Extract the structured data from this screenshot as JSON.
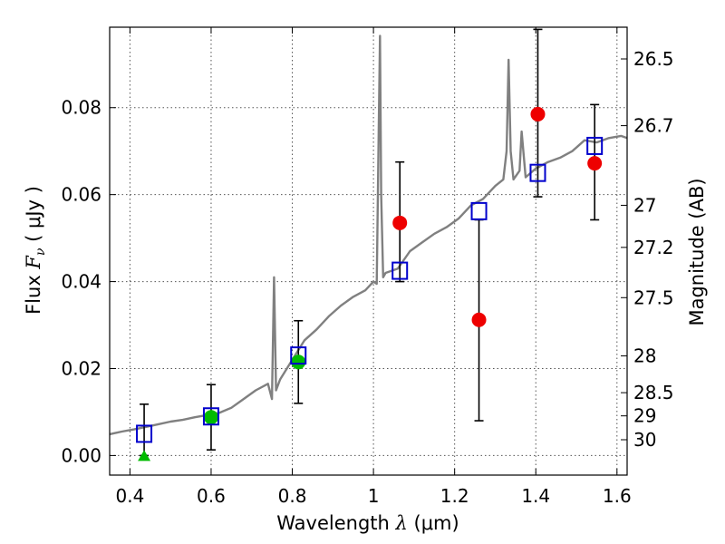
{
  "chart_data": {
    "type": "scatter",
    "xlabel": {
      "prefix": "Wavelength  ",
      "symbol": "λ",
      "unit": " (μm)"
    },
    "ylabel": {
      "prefix": "Flux  ",
      "symbol": "F",
      "subscript": "ν",
      "unit": "  ( μJy )"
    },
    "y2label": "Magnitude (AB)",
    "xlim": [
      0.35,
      1.625
    ],
    "ylim": [
      -0.0045,
      0.0985
    ],
    "grid": true,
    "colors": {
      "model": "#808080",
      "model_points": "#0000cc",
      "detections": "#ee0000",
      "green_points": "#00bb00",
      "errorbars": "#000000",
      "grid": "#555555"
    },
    "x_ticks": [
      {
        "value": 0.4,
        "label": "0.4"
      },
      {
        "value": 0.6,
        "label": "0.6"
      },
      {
        "value": 0.8,
        "label": "0.8"
      },
      {
        "value": 1.0,
        "label": "1"
      },
      {
        "value": 1.2,
        "label": "1.2"
      },
      {
        "value": 1.4,
        "label": "1.4"
      },
      {
        "value": 1.6,
        "label": "1.6"
      }
    ],
    "y_ticks": [
      {
        "value": 0.0,
        "label": "0.00"
      },
      {
        "value": 0.02,
        "label": "0.02"
      },
      {
        "value": 0.04,
        "label": "0.04"
      },
      {
        "value": 0.06,
        "label": "0.06"
      },
      {
        "value": 0.08,
        "label": "0.08"
      }
    ],
    "mag_ticks": [
      {
        "label": "26.5"
      },
      {
        "label": "26.7"
      },
      {
        "label": "27"
      },
      {
        "label": "27.2"
      },
      {
        "label": "27.5"
      },
      {
        "label": "28"
      },
      {
        "label": "28.5"
      },
      {
        "label": "29"
      },
      {
        "label": "30"
      }
    ],
    "series": [
      {
        "kind": "line",
        "x": [
          0.35,
          0.38,
          0.41,
          0.44,
          0.47,
          0.5,
          0.53,
          0.56,
          0.59,
          0.62,
          0.65,
          0.68,
          0.71,
          0.74,
          0.75,
          0.755,
          0.76,
          0.77,
          0.8,
          0.83,
          0.86,
          0.89,
          0.92,
          0.95,
          0.98,
          1.0,
          1.008,
          1.013,
          1.016,
          1.019,
          1.024,
          1.03,
          1.06,
          1.09,
          1.12,
          1.15,
          1.18,
          1.21,
          1.24,
          1.27,
          1.3,
          1.32,
          1.328,
          1.333,
          1.338,
          1.345,
          1.36,
          1.365,
          1.375,
          1.4,
          1.43,
          1.46,
          1.49,
          1.52,
          1.55,
          1.58,
          1.61,
          1.625
        ],
        "y": [
          0.0049,
          0.0055,
          0.006,
          0.0066,
          0.0072,
          0.0078,
          0.0082,
          0.0088,
          0.0093,
          0.0098,
          0.011,
          0.013,
          0.015,
          0.0165,
          0.013,
          0.041,
          0.015,
          0.0175,
          0.022,
          0.0265,
          0.029,
          0.032,
          0.0345,
          0.0365,
          0.038,
          0.04,
          0.0395,
          0.075,
          0.0965,
          0.06,
          0.041,
          0.042,
          0.043,
          0.047,
          0.049,
          0.051,
          0.0525,
          0.0545,
          0.0575,
          0.059,
          0.062,
          0.0635,
          0.07,
          0.091,
          0.07,
          0.0635,
          0.0655,
          0.0745,
          0.064,
          0.066,
          0.0675,
          0.0685,
          0.07,
          0.0725,
          0.072,
          0.073,
          0.0735,
          0.073
        ]
      },
      {
        "kind": "squares",
        "x": [
          0.435,
          0.6,
          0.815,
          1.065,
          1.26,
          1.405,
          1.545
        ],
        "y": [
          0.005,
          0.009,
          0.023,
          0.0425,
          0.0562,
          0.065,
          0.0712
        ]
      },
      {
        "kind": "circles",
        "x": [
          1.065,
          1.26,
          1.405,
          1.545
        ],
        "y": [
          0.0535,
          0.0312,
          0.0785,
          0.0672
        ],
        "err_low": [
          0.0135,
          0.0232,
          0.019,
          0.013
        ],
        "err_high": [
          0.014,
          0.023,
          0.0195,
          0.0135
        ]
      },
      {
        "kind": "green_circles",
        "x": [
          0.6,
          0.815
        ],
        "y": [
          0.0088,
          0.0215
        ],
        "err_low": [
          0.0075,
          0.0095
        ],
        "err_high": [
          0.0075,
          0.0095
        ]
      },
      {
        "kind": "green_triangle",
        "x": [
          0.435
        ],
        "y": [
          0.0
        ],
        "err_low": [
          0.0
        ],
        "err_high": [
          0.0118
        ]
      }
    ]
  }
}
